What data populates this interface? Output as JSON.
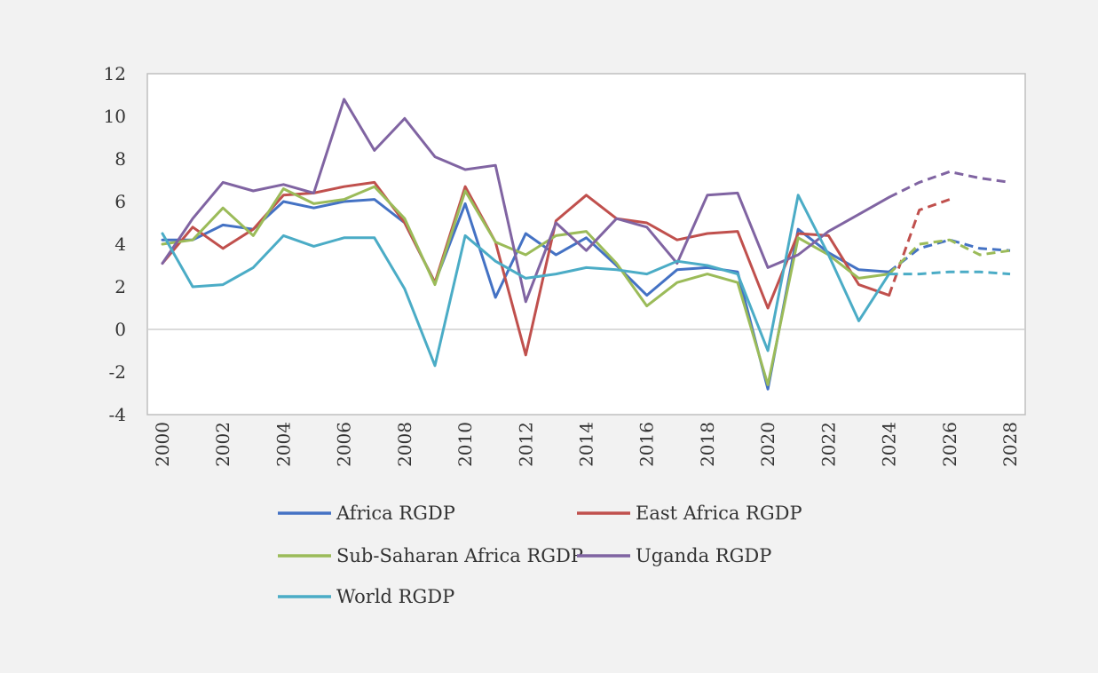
{
  "chart_data": {
    "type": "line",
    "title": "",
    "xlabel": "",
    "ylabel": "",
    "ylim": [
      -4,
      12
    ],
    "xlim": [
      2000,
      2028
    ],
    "y_ticks": [
      "12",
      "10",
      "8",
      "6",
      "4",
      "2",
      "0",
      "-2",
      "-4"
    ],
    "x_ticks": [
      "2000",
      "2002",
      "2004",
      "2006",
      "2008",
      "2010",
      "2012",
      "2014",
      "2016",
      "2018",
      "2020",
      "2022",
      "2024",
      "2026",
      "2028"
    ],
    "grid": "zero-line only",
    "legend_position": "bottom",
    "x": [
      2000,
      2001,
      2002,
      2003,
      2004,
      2005,
      2006,
      2007,
      2008,
      2009,
      2010,
      2011,
      2012,
      2013,
      2014,
      2015,
      2016,
      2017,
      2018,
      2019,
      2020,
      2021,
      2022,
      2023,
      2024,
      2025,
      2026,
      2027,
      2028
    ],
    "forecast_from": 2024,
    "series": [
      {
        "name": "Africa RGDP",
        "color": "#4472c4",
        "values": [
          4.2,
          4.2,
          4.9,
          4.7,
          6.0,
          5.7,
          6.0,
          6.1,
          5.0,
          2.2,
          5.9,
          1.5,
          4.5,
          3.5,
          4.3,
          3.0,
          1.6,
          2.8,
          2.9,
          2.7,
          -2.8,
          4.7,
          3.6,
          2.8,
          2.7,
          3.8,
          4.2,
          3.8,
          3.7
        ]
      },
      {
        "name": "East Africa RGDP",
        "color": "#c0504d",
        "values": [
          3.1,
          4.8,
          3.8,
          4.7,
          6.3,
          6.4,
          6.7,
          6.9,
          5.0,
          2.2,
          6.7,
          4.1,
          -1.2,
          5.1,
          6.3,
          5.2,
          5.0,
          4.2,
          4.5,
          4.6,
          1.0,
          4.5,
          4.4,
          2.1,
          1.6,
          5.6,
          6.1,
          null,
          null
        ]
      },
      {
        "name": "Sub-Saharan Africa RGDP",
        "color": "#9bbb59",
        "values": [
          4.0,
          4.2,
          5.7,
          4.4,
          6.6,
          5.9,
          6.1,
          6.7,
          5.2,
          2.1,
          6.5,
          4.1,
          3.5,
          4.4,
          4.6,
          3.1,
          1.1,
          2.2,
          2.6,
          2.2,
          -2.6,
          4.3,
          3.5,
          2.4,
          2.6,
          4.0,
          4.2,
          3.5,
          3.7
        ]
      },
      {
        "name": "Uganda RGDP",
        "color": "#8064a2",
        "values": [
          3.1,
          5.2,
          6.9,
          6.5,
          6.8,
          6.4,
          10.8,
          8.4,
          9.9,
          8.1,
          7.5,
          7.7,
          1.3,
          5.0,
          3.7,
          5.2,
          4.8,
          3.1,
          6.3,
          6.4,
          2.9,
          3.5,
          4.6,
          5.4,
          6.2,
          6.9,
          7.4,
          7.1,
          6.9
        ]
      },
      {
        "name": "World RGDP",
        "color": "#4bacc6",
        "values": [
          4.5,
          2.0,
          2.1,
          2.9,
          4.4,
          3.9,
          4.3,
          4.3,
          1.9,
          -1.7,
          4.4,
          3.2,
          2.4,
          2.6,
          2.9,
          2.8,
          2.6,
          3.2,
          3.0,
          2.6,
          -1.0,
          6.3,
          3.5,
          0.4,
          2.6,
          2.6,
          2.7,
          2.7,
          2.6
        ]
      }
    ]
  }
}
